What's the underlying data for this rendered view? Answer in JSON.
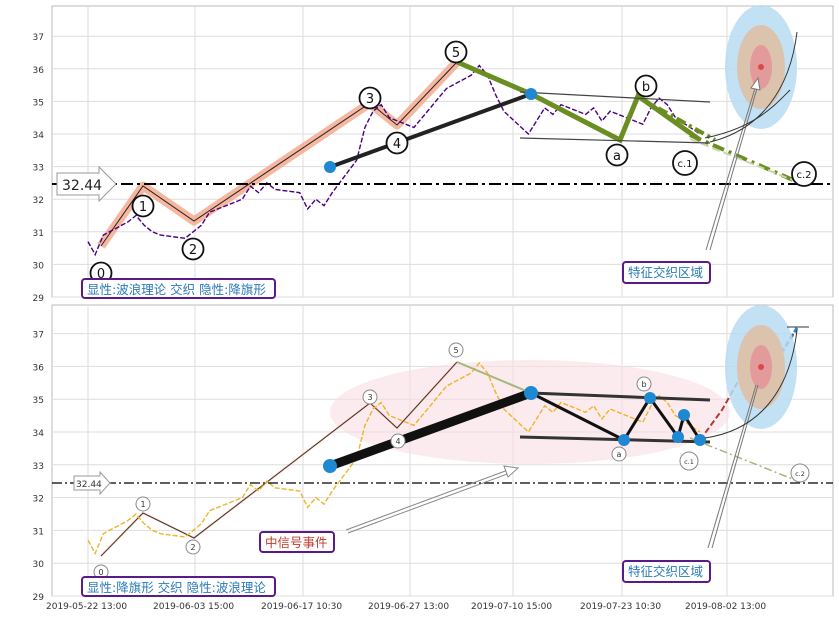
{
  "chart_data": [
    {
      "type": "line",
      "panel": "top",
      "ylim": [
        29,
        38
      ],
      "yticks": [
        29,
        30,
        31,
        32,
        33,
        34,
        35,
        36,
        37
      ],
      "grid": true,
      "reference_line": {
        "value": 32.44,
        "label": "32.44",
        "style": "dash-dot"
      },
      "wave_labels": [
        {
          "text": "0",
          "x": "2019-05-23 09:00",
          "y": 29.7
        },
        {
          "text": "1",
          "x": "2019-05-27 13:00",
          "y": 31.8
        },
        {
          "text": "2",
          "x": "2019-06-03 10:00",
          "y": 30.5
        },
        {
          "text": "3",
          "x": "2019-06-27 15:00",
          "y": 35.1
        },
        {
          "text": "4",
          "x": "2019-07-01 09:00",
          "y": 33.8
        },
        {
          "text": "5",
          "x": "2019-07-09 10:00",
          "y": 36.5
        },
        {
          "text": "a",
          "x": "2019-07-29 13:00",
          "y": 33.4
        },
        {
          "text": "b",
          "x": "2019-08-01 09:00",
          "y": 35.5
        },
        {
          "text": "c.1",
          "x": "2019-08-05 09:00",
          "y": 33.1
        },
        {
          "text": "c.2",
          "x": "2019-08-19 10:00",
          "y": 32.8
        }
      ],
      "price_series": [
        [
          "2019-05-22 13:00",
          30.7
        ],
        [
          "2019-05-23 10:00",
          30.3
        ],
        [
          "2019-05-24 10:00",
          30.9
        ],
        [
          "2019-05-27 10:00",
          31.3
        ],
        [
          "2019-05-28 10:00",
          31.5
        ],
        [
          "2019-05-29 10:00",
          31.2
        ],
        [
          "2019-05-30 10:00",
          31.0
        ],
        [
          "2019-05-31 10:00",
          30.9
        ],
        [
          "2019-06-03 10:00",
          30.8
        ],
        [
          "2019-06-04 10:00",
          31.0
        ],
        [
          "2019-06-05 10:00",
          31.2
        ],
        [
          "2019-06-06 10:00",
          31.6
        ],
        [
          "2019-06-10 10:00",
          32.0
        ],
        [
          "2019-06-11 10:00",
          32.4
        ],
        [
          "2019-06-12 10:00",
          32.2
        ],
        [
          "2019-06-13 10:00",
          32.5
        ],
        [
          "2019-06-14 10:00",
          32.3
        ],
        [
          "2019-06-17 10:30",
          32.2
        ],
        [
          "2019-06-18 10:00",
          31.7
        ],
        [
          "2019-06-19 10:00",
          32.0
        ],
        [
          "2019-06-20 10:00",
          31.8
        ],
        [
          "2019-06-21 10:00",
          32.2
        ],
        [
          "2019-06-24 10:00",
          33.2
        ],
        [
          "2019-06-25 10:00",
          34.2
        ],
        [
          "2019-06-26 10:00",
          34.7
        ],
        [
          "2019-06-27 10:00",
          34.9
        ],
        [
          "2019-06-28 10:00",
          34.5
        ],
        [
          "2019-07-01 10:00",
          34.2
        ],
        [
          "2019-07-02 10:00",
          34.5
        ],
        [
          "2019-07-03 10:00",
          34.8
        ],
        [
          "2019-07-04 10:00",
          35.1
        ],
        [
          "2019-07-05 10:00",
          35.4
        ],
        [
          "2019-07-08 10:00",
          35.8
        ],
        [
          "2019-07-09 10:00",
          36.1
        ],
        [
          "2019-07-10 10:00",
          35.8
        ],
        [
          "2019-07-11 10:00",
          35.2
        ],
        [
          "2019-07-12 10:00",
          34.7
        ],
        [
          "2019-07-15 10:00",
          34.0
        ],
        [
          "2019-07-16 10:00",
          34.4
        ],
        [
          "2019-07-17 10:00",
          34.8
        ],
        [
          "2019-07-18 10:00",
          34.6
        ],
        [
          "2019-07-19 10:00",
          34.9
        ],
        [
          "2019-07-22 10:00",
          34.6
        ],
        [
          "2019-07-23 10:00",
          34.8
        ],
        [
          "2019-07-24 10:00",
          34.4
        ],
        [
          "2019-07-25 10:00",
          34.7
        ],
        [
          "2019-07-26 10:00",
          34.6
        ],
        [
          "2019-07-29 10:00",
          34.3
        ],
        [
          "2019-07-30 10:00",
          34.8
        ],
        [
          "2019-07-31 10:00",
          35.1
        ],
        [
          "2019-08-01 10:00",
          34.9
        ],
        [
          "2019-08-02 10:00",
          34.5
        ],
        [
          "2019-08-05 10:00",
          34.0
        ]
      ],
      "text_boxes": [
        {
          "text": "显性:波浪理论 交织 隐性:降旗形"
        },
        {
          "text": "特征交织区域"
        }
      ]
    },
    {
      "type": "line",
      "panel": "bottom",
      "ylim": [
        29,
        38
      ],
      "yticks": [
        29,
        30,
        31,
        32,
        33,
        34,
        35,
        36,
        37
      ],
      "grid": true,
      "reference_line": {
        "value": 32.44,
        "label": "32.44",
        "style": "dash-dot"
      },
      "xtick_labels": [
        "2019-05-22 13:00",
        "2019-06-03 15:00",
        "2019-06-17 10:30",
        "2019-06-27 13:00",
        "2019-07-10 15:00",
        "2019-07-23 10:30",
        "2019-08-02 13:00"
      ],
      "wave_labels": [
        {
          "text": "0"
        },
        {
          "text": "1"
        },
        {
          "text": "2"
        },
        {
          "text": "3"
        },
        {
          "text": "4"
        },
        {
          "text": "5"
        },
        {
          "text": "a"
        },
        {
          "text": "b"
        },
        {
          "text": "c.1"
        },
        {
          "text": "c.2"
        }
      ],
      "text_boxes": [
        {
          "text": "中信号事件"
        },
        {
          "text": "特征交织区域"
        },
        {
          "text": "显性:降旗形 交织 隐性:波浪理论"
        }
      ]
    }
  ],
  "colors": {
    "price_top": "#4b0082",
    "price_bottom": "#f0b428",
    "wave_highlight": "#f4a58a",
    "flag": "#6b8e23",
    "trend": "#222222",
    "marker": "#1f88d2",
    "box_border": "#5a1a8a",
    "box_text": "#2a7ab8",
    "box_text_red": "#c0392b"
  }
}
